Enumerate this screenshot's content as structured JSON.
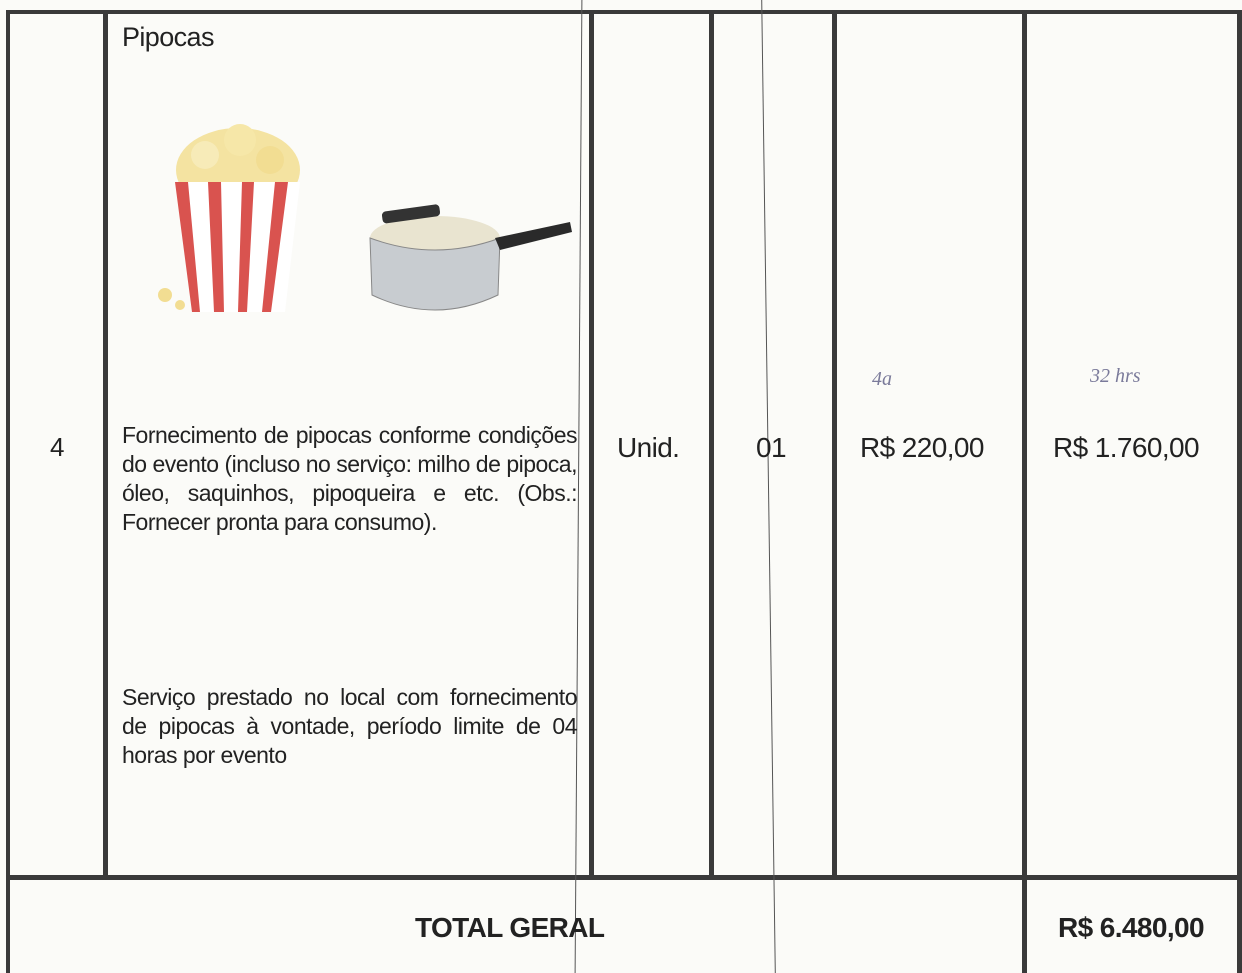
{
  "table": {
    "rows": [
      {
        "item": "4",
        "description": {
          "title": "Pipocas",
          "paragraphs": [
            "Fornecimento de pipocas conforme condições do evento (incluso no serviço: milho de pipoca, óleo, saquinhos, pipoqueira e etc. (Obs.: Fornecer pronta para consumo).",
            "Serviço prestado no local com fornecimento de pipocas à vontade, período limite de 04 horas por evento"
          ]
        },
        "unit": "Unid.",
        "quantity": "01",
        "unit_price": "R$ 220,00",
        "total": "R$ 1.760,00",
        "notes": [
          "4a",
          "32 hrs"
        ]
      }
    ],
    "footer": {
      "label": "TOTAL GERAL",
      "total": "R$ 6.480,00"
    }
  }
}
